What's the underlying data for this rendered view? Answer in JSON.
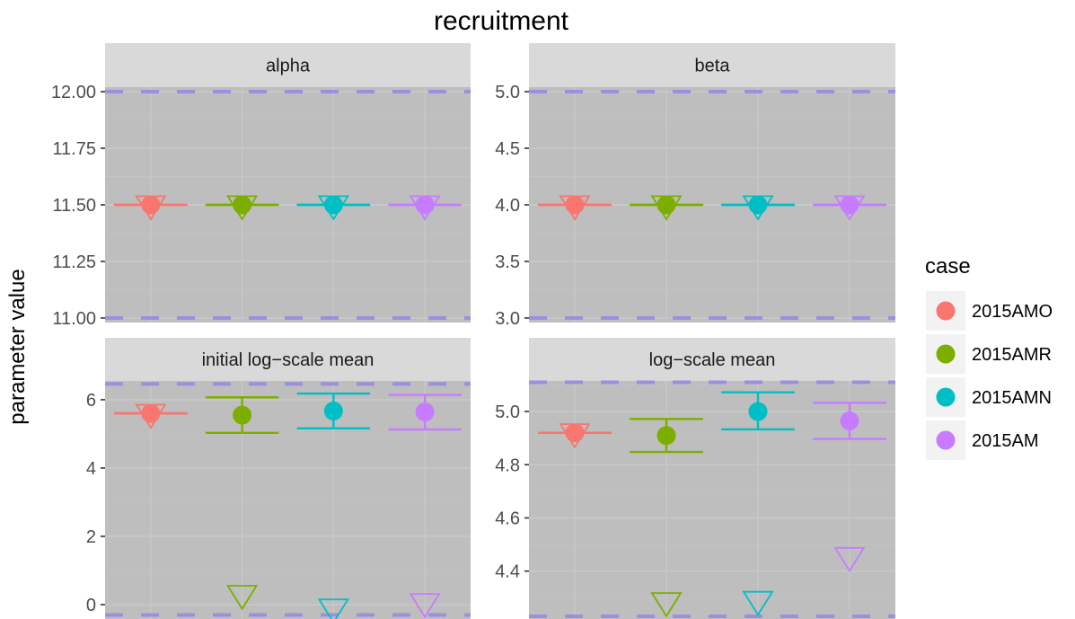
{
  "chart_data": {
    "type": "scatter",
    "title": "recruitment",
    "ylabel": "parameter value",
    "xlabel": "",
    "grid": true,
    "legend": {
      "title": "case",
      "placement": "right",
      "entries": [
        "2015AMO",
        "2015AMR",
        "2015AMN",
        "2015AM"
      ]
    },
    "colors": {
      "2015AMO": "#F8766D",
      "2015AMR": "#7CAE00",
      "2015AMN": "#00BFC4",
      "2015AM": "#C77CFF",
      "bound_line": "#9A91DE",
      "panel_bg": "#BEBEBE",
      "strip_bg": "#D9D9D9"
    },
    "bound_line_style": "dashed",
    "markers": {
      "estimate": "filled-circle",
      "initial_value": "open-triangle-down",
      "interval": "error-bar"
    },
    "series": [
      "2015AMO",
      "2015AMR",
      "2015AMN",
      "2015AM"
    ],
    "panels": [
      {
        "label": "alpha",
        "ylim": [
          10.98,
          12.02
        ],
        "yticks": [
          11.0,
          11.25,
          11.5,
          11.75,
          12.0
        ],
        "ytick_labels": [
          "11.00",
          "11.25",
          "11.50",
          "11.75",
          "12.00"
        ],
        "bounds": [
          11.0,
          12.0
        ],
        "points": [
          {
            "case": "2015AMO",
            "value": 11.5,
            "lower": 11.5,
            "upper": 11.5,
            "init": 11.5
          },
          {
            "case": "2015AMR",
            "value": 11.5,
            "lower": 11.5,
            "upper": 11.5,
            "init": 11.5
          },
          {
            "case": "2015AMN",
            "value": 11.5,
            "lower": 11.5,
            "upper": 11.5,
            "init": 11.5
          },
          {
            "case": "2015AM",
            "value": 11.5,
            "lower": 11.5,
            "upper": 11.5,
            "init": 11.5
          }
        ]
      },
      {
        "label": "beta",
        "ylim": [
          2.96,
          5.04
        ],
        "yticks": [
          3.0,
          3.5,
          4.0,
          4.5,
          5.0
        ],
        "ytick_labels": [
          "3.0",
          "3.5",
          "4.0",
          "4.5",
          "5.0"
        ],
        "bounds": [
          3.0,
          5.0
        ],
        "points": [
          {
            "case": "2015AMO",
            "value": 4.0,
            "lower": 4.0,
            "upper": 4.0,
            "init": 4.0
          },
          {
            "case": "2015AMR",
            "value": 4.0,
            "lower": 4.0,
            "upper": 4.0,
            "init": 4.0
          },
          {
            "case": "2015AMN",
            "value": 4.0,
            "lower": 4.0,
            "upper": 4.0,
            "init": 4.0
          },
          {
            "case": "2015AM",
            "value": 4.0,
            "lower": 4.0,
            "upper": 4.0,
            "init": 4.0
          }
        ]
      },
      {
        "label": "initial log−scale mean",
        "ylim": [
          -0.42,
          6.55
        ],
        "yticks": [
          0,
          2,
          4,
          6
        ],
        "ytick_labels": [
          "0",
          "2",
          "4",
          "6"
        ],
        "bounds": [
          -0.3,
          6.46
        ],
        "points": [
          {
            "case": "2015AMO",
            "value": 5.6,
            "lower": 5.6,
            "upper": 5.6,
            "init": 5.6
          },
          {
            "case": "2015AMR",
            "value": 5.55,
            "lower": 5.03,
            "upper": 6.07,
            "init": 0.3
          },
          {
            "case": "2015AMN",
            "value": 5.67,
            "lower": 5.16,
            "upper": 6.18,
            "init": -0.1
          },
          {
            "case": "2015AM",
            "value": 5.64,
            "lower": 5.13,
            "upper": 6.14,
            "init": 0.06
          }
        ]
      },
      {
        "label": "log−scale mean",
        "ylim": [
          4.22,
          5.115
        ],
        "yticks": [
          4.4,
          4.6,
          4.8,
          5.0
        ],
        "ytick_labels": [
          "4.4",
          "4.6",
          "4.8",
          "5.0"
        ],
        "bounds": [
          4.23,
          5.11
        ],
        "points": [
          {
            "case": "2015AMO",
            "value": 4.92,
            "lower": 4.92,
            "upper": 4.92,
            "init": 4.92
          },
          {
            "case": "2015AMR",
            "value": 4.91,
            "lower": 4.848,
            "upper": 4.972,
            "init": 4.285
          },
          {
            "case": "2015AMN",
            "value": 5.0,
            "lower": 4.933,
            "upper": 5.072,
            "init": 4.29
          },
          {
            "case": "2015AM",
            "value": 4.965,
            "lower": 4.897,
            "upper": 5.033,
            "init": 4.455
          }
        ]
      }
    ]
  }
}
